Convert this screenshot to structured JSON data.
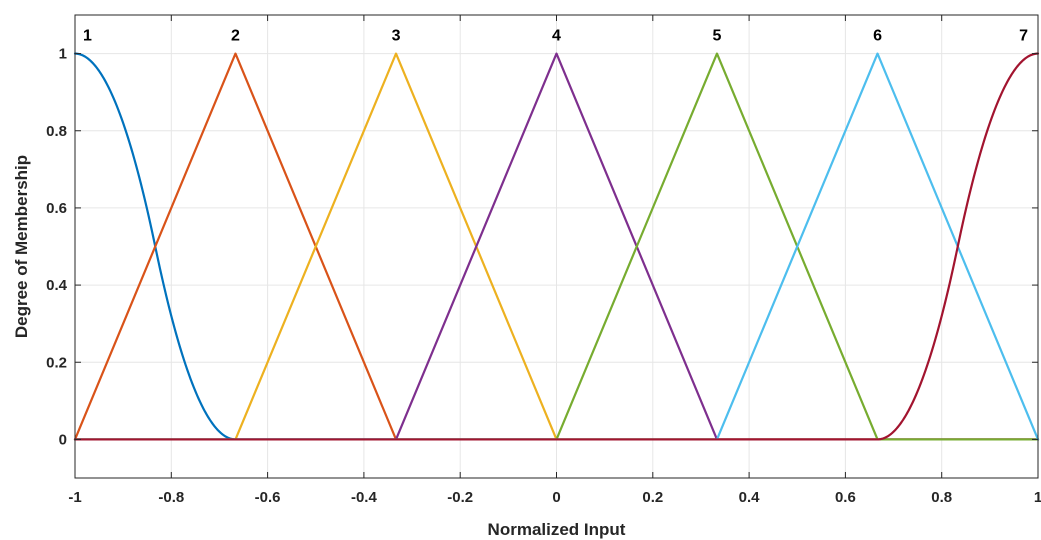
{
  "chart_data": {
    "type": "line",
    "title": "",
    "xlabel": "Normalized Input",
    "ylabel": "Degree of Membership",
    "xlim": [
      -1,
      1
    ],
    "ylim": [
      -0.1,
      1.1
    ],
    "grid": true,
    "x_ticks": [
      -1,
      -0.8,
      -0.6,
      -0.4,
      -0.2,
      0,
      0.2,
      0.4,
      0.6,
      0.8,
      1
    ],
    "x_tick_labels": [
      "-1",
      "-0.8",
      "-0.6",
      "-0.4",
      "-0.2",
      "0",
      "0.2",
      "0.4",
      "0.6",
      "0.8",
      "1"
    ],
    "y_ticks": [
      0,
      0.2,
      0.4,
      0.6,
      0.8,
      1
    ],
    "y_tick_labels": [
      "0",
      "0.2",
      "0.4",
      "0.6",
      "0.8",
      "1"
    ],
    "series": [
      {
        "label": "1",
        "shape": "z-shaped",
        "params": [
          -1,
          -0.6667
        ],
        "peak": -1,
        "color": "#0072BD"
      },
      {
        "label": "2",
        "shape": "triangular",
        "params": [
          -1,
          -0.6667,
          -0.3333
        ],
        "peak": -0.6667,
        "color": "#D95319"
      },
      {
        "label": "3",
        "shape": "triangular",
        "params": [
          -0.6667,
          -0.3333,
          0
        ],
        "peak": -0.3333,
        "color": "#EDB120"
      },
      {
        "label": "4",
        "shape": "triangular",
        "params": [
          -0.3333,
          0,
          0.3333
        ],
        "peak": 0,
        "color": "#7E2F8E"
      },
      {
        "label": "5",
        "shape": "triangular",
        "params": [
          0,
          0.3333,
          0.6667
        ],
        "peak": 0.3333,
        "color": "#77AC30"
      },
      {
        "label": "6",
        "shape": "triangular",
        "params": [
          0.3333,
          0.6667,
          1
        ],
        "peak": 0.6667,
        "color": "#4DBEEE"
      },
      {
        "label": "7",
        "shape": "s-shaped",
        "params": [
          0.6667,
          1
        ],
        "peak": 1,
        "color": "#A2142F"
      }
    ]
  }
}
